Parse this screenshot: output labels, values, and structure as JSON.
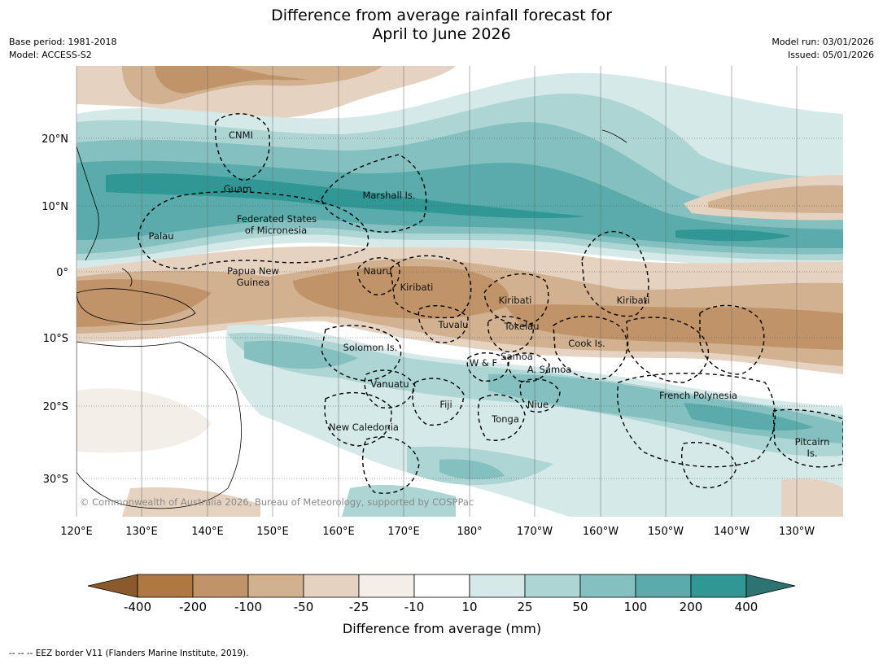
{
  "header": {
    "title_line1": "Difference from average rainfall forecast for",
    "title_line2": "April to June 2026",
    "base_period": "Base period: 1981-2018",
    "model": "Model: ACCESS-S2",
    "model_run": "Model run: 03/01/2026",
    "issued": "Issued: 05/01/2026"
  },
  "axes": {
    "lat_labels": [
      "20°N",
      "10°N",
      "0°",
      "10°S",
      "20°S",
      "30°S"
    ],
    "lon_labels": [
      "120°E",
      "130°E",
      "140°E",
      "150°E",
      "160°E",
      "170°E",
      "180°",
      "170°W",
      "160°W",
      "150°W",
      "140°W",
      "130°W"
    ]
  },
  "places": [
    {
      "id": "cnmi",
      "label": "CNMI"
    },
    {
      "id": "guam",
      "label": "Guam"
    },
    {
      "id": "marshall",
      "label": "Marshall Is."
    },
    {
      "id": "fsm1",
      "label": "Federated States"
    },
    {
      "id": "fsm2",
      "label": "of Micronesia"
    },
    {
      "id": "palau",
      "label": "Palau"
    },
    {
      "id": "png1",
      "label": "Papua New"
    },
    {
      "id": "png2",
      "label": "Guinea"
    },
    {
      "id": "nauru",
      "label": "Nauru"
    },
    {
      "id": "kiribati1",
      "label": "Kiribati"
    },
    {
      "id": "kiribati2",
      "label": "Kiribati"
    },
    {
      "id": "kiribati3",
      "label": "Kiribati"
    },
    {
      "id": "tuvalu",
      "label": "Tuvalu"
    },
    {
      "id": "tokelau",
      "label": "Tokelau"
    },
    {
      "id": "cook",
      "label": "Cook Is."
    },
    {
      "id": "solomon",
      "label": "Solomon Is."
    },
    {
      "id": "samoa",
      "label": "Samoa"
    },
    {
      "id": "wf",
      "label": "W & F"
    },
    {
      "id": "asamoa",
      "label": "A. Samoa"
    },
    {
      "id": "vanuatu",
      "label": "Vanuatu"
    },
    {
      "id": "fiji",
      "label": "Fiji"
    },
    {
      "id": "niue",
      "label": "Niue"
    },
    {
      "id": "tonga",
      "label": "Tonga"
    },
    {
      "id": "newcal",
      "label": "New Caledonia"
    },
    {
      "id": "frpoly",
      "label": "French Polynesia"
    },
    {
      "id": "pitcairn1",
      "label": "Pitcairn"
    },
    {
      "id": "pitcairn2",
      "label": "Is."
    }
  ],
  "copyright": "© Commonwealth of Australia 2026, Bureau of Meteorology, supported by COSPPac",
  "colorbar": {
    "ticks": [
      "-400",
      "-200",
      "-100",
      "-50",
      "-25",
      "-10",
      "10",
      "25",
      "50",
      "100",
      "200",
      "400"
    ],
    "colors": [
      "#8a5a2b",
      "#ae7840",
      "#c09468",
      "#d2b190",
      "#e6d2c0",
      "#f3eee8",
      "#ffffff",
      "#d5eae8",
      "#acd5d3",
      "#84c0bf",
      "#5aabab",
      "#319795",
      "#2d7372"
    ],
    "title": "Difference from average (mm)"
  },
  "footnote_dashes": "-- -- --",
  "footnote": "EEZ border V11 (Flanders Marine Institute, 2019)."
}
